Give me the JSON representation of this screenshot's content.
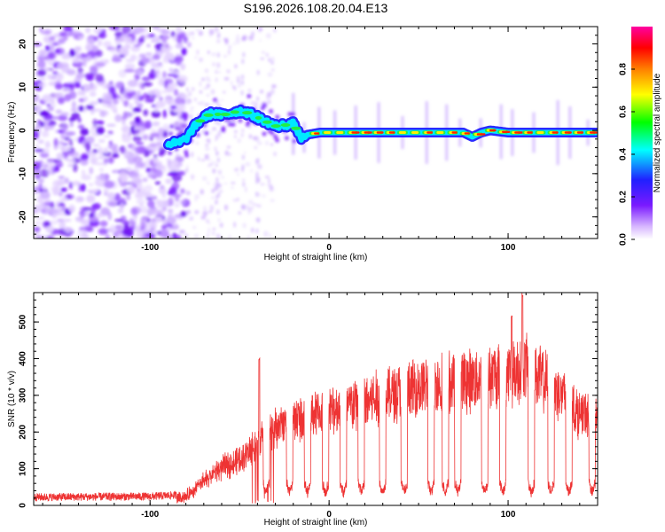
{
  "chart_data": [
    {
      "type": "heatmap",
      "title": "S196.2026.108.20.04.E13",
      "xlabel": "Height of straight line (km)",
      "ylabel": "Frequency (Hz)",
      "xlim": [
        -165,
        150
      ],
      "ylim": [
        -25,
        24
      ],
      "xticks": [
        "-100",
        "0",
        "100"
      ],
      "yticks": [
        "-20",
        "-10",
        "0",
        "10",
        "20"
      ],
      "ridge": {
        "x": [
          -90,
          -85,
          -80,
          -75,
          -70,
          -65,
          -60,
          -55,
          -50,
          -45,
          -40,
          -35,
          -30,
          -25,
          -20,
          -15,
          -12,
          -5,
          0,
          20,
          40,
          60,
          75,
          80,
          85,
          90,
          100,
          120,
          150
        ],
        "freq": [
          -3,
          -3,
          -2,
          1,
          3,
          4,
          3.5,
          4,
          4.5,
          4,
          3,
          2,
          1,
          1.2,
          1.5,
          -2,
          -1,
          -0.5,
          -0.5,
          -0.5,
          -0.5,
          -0.5,
          -0.5,
          -1.5,
          -0.5,
          0,
          -0.5,
          -0.5,
          -0.5
        ]
      },
      "colorbar": {
        "label": "Normalized spectral amplitude",
        "range": [
          0,
          1
        ],
        "ticks": [
          "0.0",
          "0.2",
          "0.4",
          "0.6",
          "0.8"
        ],
        "colormap": [
          "#ffffff",
          "#d8b8ff",
          "#7a1aff",
          "#2020ff",
          "#00ffff",
          "#00ff00",
          "#ffff00",
          "#ff8000",
          "#ff0000",
          "#ff00a0"
        ]
      }
    },
    {
      "type": "line",
      "xlabel": "Height of straight line (km)",
      "ylabel": "SNR (10 * v/v)",
      "xlim": [
        -165,
        150
      ],
      "ylim": [
        0,
        580
      ],
      "xticks": [
        "-100",
        "0",
        "100"
      ],
      "yticks": [
        "0",
        "100",
        "200",
        "300",
        "400",
        "500"
      ],
      "line_color": "#ee3333",
      "envelope": {
        "x": [
          -165,
          -100,
          -80,
          -70,
          -60,
          -50,
          -40,
          -30,
          -20,
          -10,
          0,
          20,
          40,
          50,
          60,
          80,
          100,
          110,
          120,
          130,
          140,
          150
        ],
        "snr": [
          18,
          20,
          25,
          70,
          110,
          130,
          180,
          220,
          250,
          260,
          270,
          300,
          330,
          340,
          350,
          360,
          380,
          400,
          360,
          320,
          260,
          260
        ]
      },
      "spikes": [
        {
          "x": -39,
          "snr": 405
        },
        {
          "x": 102,
          "snr": 520
        },
        {
          "x": 108,
          "snr": 580
        }
      ],
      "dips": [
        -35,
        -22,
        -12,
        -2,
        8,
        18,
        30,
        42,
        57,
        65,
        72,
        87,
        97,
        113,
        124,
        134,
        147
      ]
    }
  ]
}
